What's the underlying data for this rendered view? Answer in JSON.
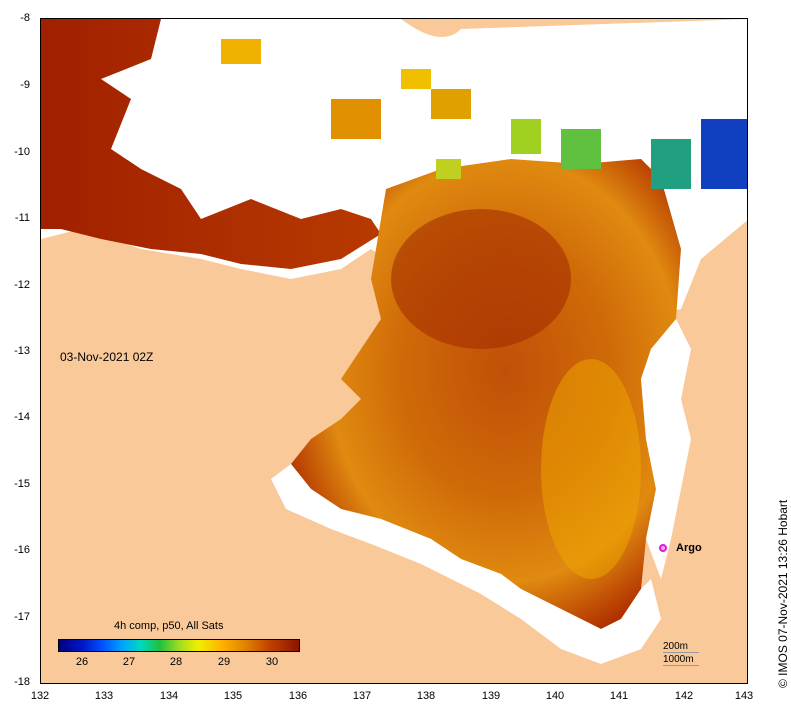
{
  "map": {
    "x_ticks": [
      "132",
      "133",
      "134",
      "135",
      "136",
      "137",
      "138",
      "139",
      "140",
      "141",
      "142",
      "143"
    ],
    "y_ticks": [
      "-8",
      "-9",
      "-10",
      "-11",
      "-12",
      "-13",
      "-14",
      "-15",
      "-16",
      "-17",
      "-18"
    ]
  },
  "timestamp": "03-Nov-2021 02Z",
  "credit": "©  IMOS 07-Nov-2021 13:26 Hobart",
  "argo": {
    "label": "Argo",
    "color": "#e31ad8"
  },
  "legend": {
    "title": "4h comp, p50, All Sats",
    "ticks": [
      "26",
      "27",
      "28",
      "29",
      "30"
    ],
    "range": [
      25.3,
      30.4
    ]
  },
  "contours": {
    "line1": "200m",
    "line2": "1000m"
  },
  "colors": {
    "land": "#f9c999",
    "cloud": "#ffffff",
    "warm": "#a82a00",
    "mid": "#d06000",
    "cool": "#f0b000"
  }
}
